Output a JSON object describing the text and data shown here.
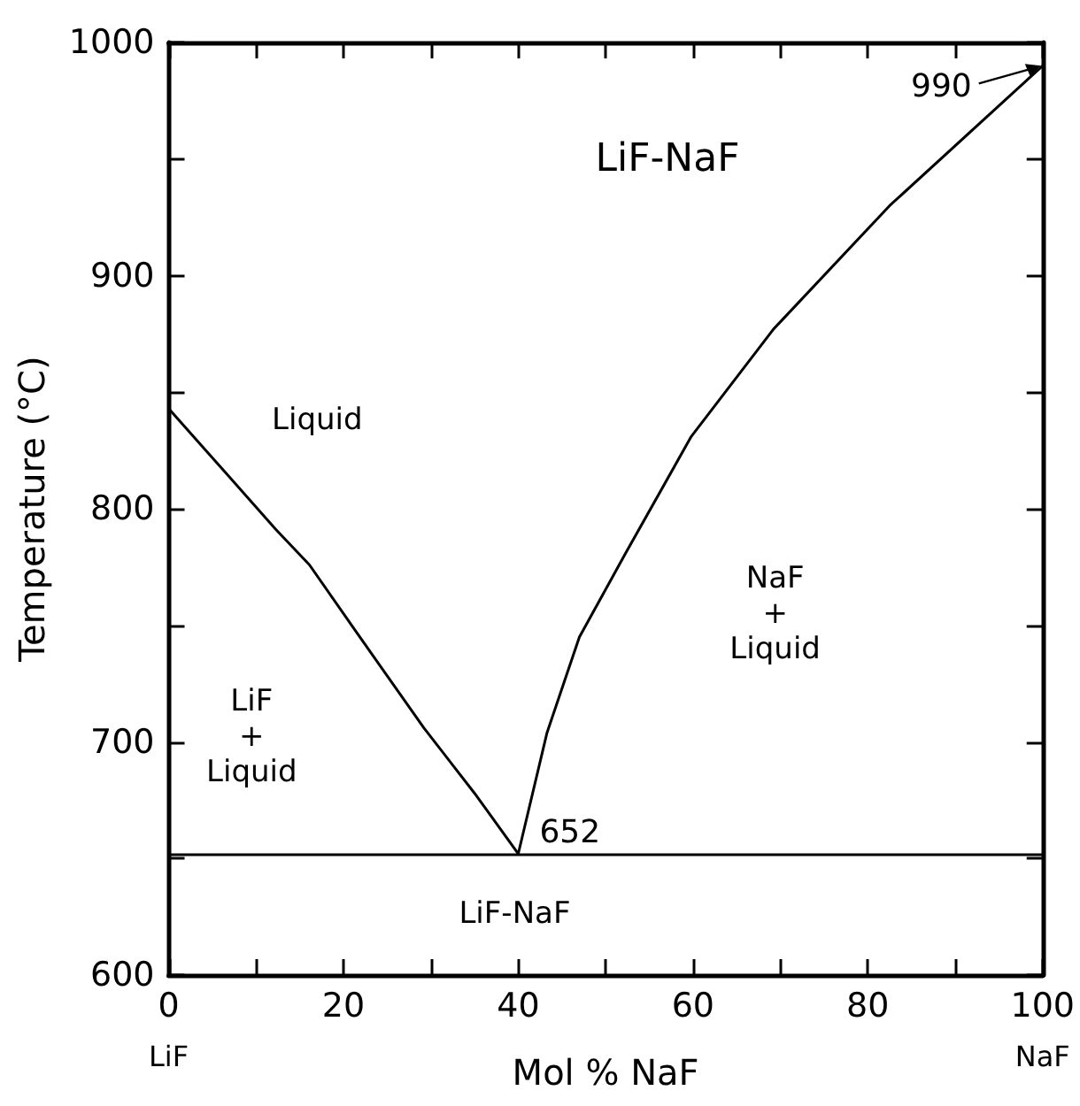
{
  "chart_data": {
    "type": "line",
    "title": "LiF-NaF",
    "xlabel": "Mol % NaF",
    "ylabel": "Temperature (°C)",
    "series": [
      {
        "color": "#000000",
        "x": [
          0,
          12.3,
          16.1,
          21.5,
          29.2,
          35,
          40
        ],
        "values": [
          843,
          791,
          776,
          747,
          706,
          678,
          652
        ]
      },
      {
        "color": "#000000",
        "x": [
          40,
          43.3,
          47,
          52.3,
          59.8,
          69.2,
          82.5,
          100
        ],
        "values": [
          652,
          704,
          745,
          781,
          831,
          877,
          930,
          990
        ]
      }
    ],
    "ref_lines": [
      {
        "axis": "y",
        "value": 652,
        "color": "#000000"
      }
    ],
    "annotations": [
      "Liquid",
      "LiF\n+\nLiquid",
      "NaF\n+\nLiquid",
      "LiF-NaF",
      "LiF",
      "NaF",
      {
        "text": "652",
        "x": 40,
        "y": 652
      },
      {
        "text": "990",
        "x": 100,
        "y": 990
      }
    ],
    "xlim": [
      0,
      100
    ],
    "ylim": [
      600,
      1000
    ],
    "xticks": [
      0,
      {
        "value": 10,
        "label": null
      },
      20,
      {
        "value": 30,
        "label": null
      },
      40,
      {
        "value": 50,
        "label": null
      },
      60,
      {
        "value": 70,
        "label": null
      },
      80,
      {
        "value": 90,
        "label": null
      },
      100
    ],
    "yticks": [
      600,
      {
        "value": 650,
        "label": null
      },
      700,
      {
        "value": 750,
        "label": null
      },
      800,
      {
        "value": 850,
        "label": null
      },
      900,
      {
        "value": 950,
        "label": null
      },
      1000
    ]
  }
}
